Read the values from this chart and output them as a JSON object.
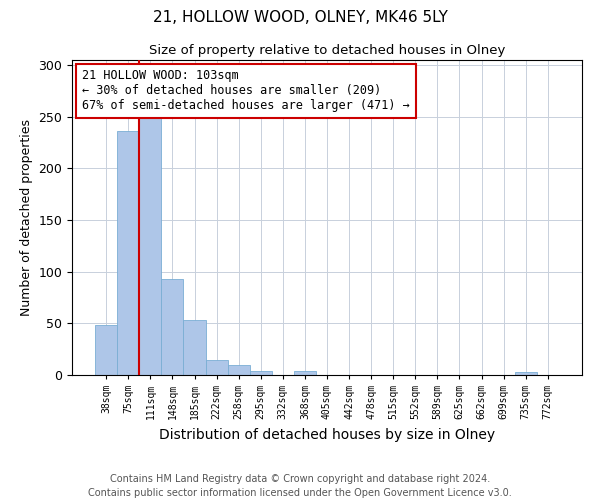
{
  "title": "21, HOLLOW WOOD, OLNEY, MK46 5LY",
  "subtitle": "Size of property relative to detached houses in Olney",
  "xlabel": "Distribution of detached houses by size in Olney",
  "ylabel": "Number of detached properties",
  "footer_line1": "Contains HM Land Registry data © Crown copyright and database right 2024.",
  "footer_line2": "Contains public sector information licensed under the Open Government Licence v3.0.",
  "bin_labels": [
    "38sqm",
    "75sqm",
    "111sqm",
    "148sqm",
    "185sqm",
    "222sqm",
    "258sqm",
    "295sqm",
    "332sqm",
    "368sqm",
    "405sqm",
    "442sqm",
    "478sqm",
    "515sqm",
    "552sqm",
    "589sqm",
    "625sqm",
    "662sqm",
    "699sqm",
    "735sqm",
    "772sqm"
  ],
  "bar_heights": [
    48,
    236,
    250,
    93,
    53,
    15,
    10,
    4,
    0,
    4,
    0,
    0,
    0,
    0,
    0,
    0,
    0,
    0,
    0,
    3,
    0
  ],
  "bar_color": "#aec6e8",
  "bar_edge_color": "#7aaed4",
  "vline_x": 1.5,
  "vline_color": "#cc0000",
  "annotation_text": "21 HOLLOW WOOD: 103sqm\n← 30% of detached houses are smaller (209)\n67% of semi-detached houses are larger (471) →",
  "annotation_box_color": "#ffffff",
  "annotation_box_edge_color": "#cc0000",
  "ylim": [
    0,
    305
  ],
  "yticks": [
    0,
    50,
    100,
    150,
    200,
    250,
    300
  ],
  "background_color": "#ffffff",
  "grid_color": "#c8d0dc",
  "title_fontsize": 11,
  "subtitle_fontsize": 9.5,
  "xlabel_fontsize": 10,
  "ylabel_fontsize": 9,
  "footer_fontsize": 7,
  "annotation_fontsize": 8.5
}
